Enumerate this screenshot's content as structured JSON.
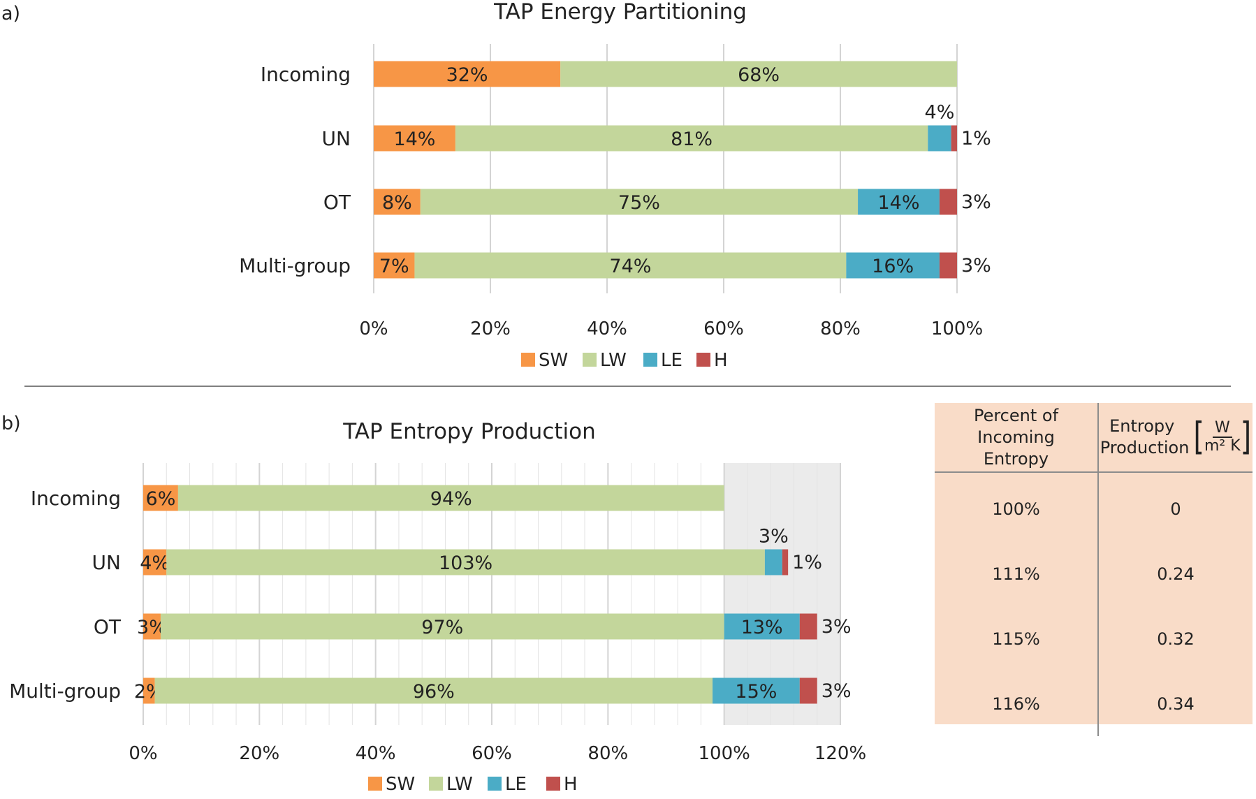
{
  "chart_data": [
    {
      "id": "a",
      "type": "bar",
      "orientation": "horizontal",
      "stacked": true,
      "panel_label": "a)",
      "title": "TAP Energy Partitioning",
      "categories": [
        "Incoming",
        "UN",
        "OT",
        "Multi-group"
      ],
      "series": [
        {
          "name": "SW",
          "color": "#f79646",
          "values": [
            32,
            14,
            8,
            7
          ],
          "labels": [
            "32%",
            "14%",
            "8%",
            "7%"
          ]
        },
        {
          "name": "LW",
          "color": "#c3d69b",
          "values": [
            68,
            81,
            75,
            74
          ],
          "labels": [
            "68%",
            "81%",
            "75%",
            "74%"
          ]
        },
        {
          "name": "LE",
          "color": "#4bacc6",
          "values": [
            0,
            4,
            14,
            16
          ],
          "labels": [
            "",
            "4%",
            "14%",
            "16%"
          ]
        },
        {
          "name": "H",
          "color": "#c0504d",
          "values": [
            0,
            1,
            3,
            3
          ],
          "labels": [
            "",
            "1%",
            "3%",
            "3%"
          ]
        }
      ],
      "xlim": [
        0,
        100
      ],
      "xticks": [
        "0%",
        "20%",
        "40%",
        "60%",
        "80%",
        "100%"
      ],
      "grid": true,
      "legend": "bottom"
    },
    {
      "id": "b",
      "type": "bar",
      "orientation": "horizontal",
      "stacked": true,
      "panel_label": "b)",
      "title": "TAP Entropy Production",
      "categories": [
        "Incoming",
        "UN",
        "OT",
        "Multi-group"
      ],
      "series": [
        {
          "name": "SW",
          "color": "#f79646",
          "values": [
            6,
            4,
            3,
            2
          ],
          "labels": [
            "6%",
            "4%",
            "3%",
            "2%"
          ]
        },
        {
          "name": "LW",
          "color": "#c3d69b",
          "values": [
            94,
            103,
            97,
            96
          ],
          "labels": [
            "94%",
            "103%",
            "97%",
            "96%"
          ]
        },
        {
          "name": "LE",
          "color": "#4bacc6",
          "values": [
            0,
            3,
            13,
            15
          ],
          "labels": [
            "",
            "3%",
            "13%",
            "15%"
          ]
        },
        {
          "name": "H",
          "color": "#c0504d",
          "values": [
            0,
            1,
            3,
            3
          ],
          "labels": [
            "",
            "1%",
            "3%",
            "3%"
          ]
        }
      ],
      "xlim": [
        0,
        120
      ],
      "xticks": [
        "0%",
        "20%",
        "40%",
        "60%",
        "80%",
        "100%",
        "120%"
      ],
      "shaded_region": [
        100,
        120
      ],
      "grid": true,
      "legend": "bottom"
    }
  ],
  "table": {
    "headers": [
      "Percent of Incoming Entropy",
      "Entropy Production"
    ],
    "unit": {
      "numerator": "W",
      "denominator": "m² K"
    },
    "rows": [
      [
        "100%",
        "0"
      ],
      [
        "111%",
        "0.24"
      ],
      [
        "115%",
        "0.32"
      ],
      [
        "116%",
        "0.34"
      ]
    ]
  }
}
